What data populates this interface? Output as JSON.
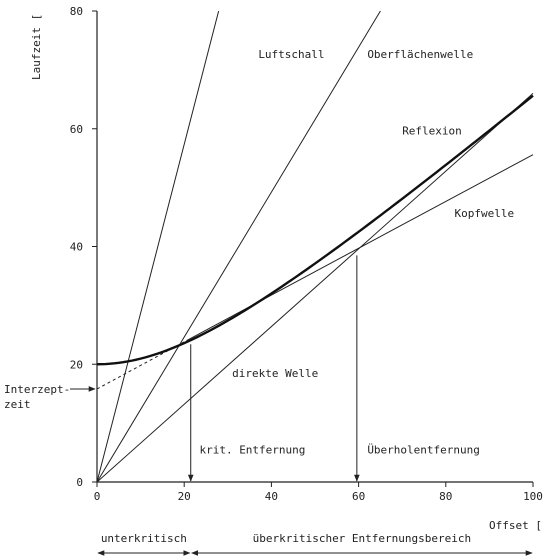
{
  "chart_data": {
    "type": "line",
    "xlabel": "Offset [",
    "ylabel": "Laufzeit [",
    "xlim": [
      0,
      100
    ],
    "ylim": [
      0,
      80
    ],
    "x_ticks": [
      0,
      20,
      40,
      60,
      80,
      100
    ],
    "y_ticks": [
      0,
      20,
      40,
      60,
      80
    ],
    "grid": false,
    "series": [
      {
        "name": "Luftschall",
        "style": "thin",
        "points": [
          [
            0,
            0
          ],
          [
            27.9,
            80
          ]
        ]
      },
      {
        "name": "Oberflächenwelle",
        "style": "thin",
        "points": [
          [
            0,
            0
          ],
          [
            65,
            80
          ]
        ]
      },
      {
        "name": "direkte Welle",
        "style": "thin",
        "points": [
          [
            0,
            0
          ],
          [
            100,
            66
          ]
        ]
      },
      {
        "name": "Kopfwelle",
        "style": "thin",
        "points": [
          [
            20.5,
            24
          ],
          [
            100,
            55.6
          ]
        ]
      },
      {
        "name": "",
        "style": "dashed",
        "points": [
          [
            0,
            15.8
          ],
          [
            20.5,
            24
          ]
        ]
      },
      {
        "name": "Reflexion",
        "style": "thick",
        "t0": 20,
        "velocity": 1.6
      }
    ],
    "annotations": [
      {
        "text": "Luftschall",
        "x": 37,
        "y": 72
      },
      {
        "text": "Oberflächenwelle",
        "x": 62,
        "y": 72
      },
      {
        "text": "Reflexion",
        "x": 70,
        "y": 59
      },
      {
        "text": "Kopfwelle",
        "x": 82,
        "y": 45
      },
      {
        "text": "direkte Welle",
        "x": 31,
        "y": 17.8
      },
      {
        "text": "krit. Entfernung",
        "x": 23.5,
        "y": 4.8
      },
      {
        "text": "Überholentfernung",
        "x": 62,
        "y": 4.8
      }
    ],
    "markers": [
      {
        "name": "krit-entfernung",
        "x": 21.5,
        "y_from": 23.4,
        "y_to": 0
      },
      {
        "name": "ueberholentfernung",
        "x": 59.6,
        "y_from": 38.5,
        "y_to": 0
      }
    ],
    "intercept": {
      "lines": [
        "Interzept-",
        "zeit"
      ],
      "value": 15.8
    },
    "ranges": [
      {
        "text": "unterkritisch",
        "from": 0,
        "to": 21.5
      },
      {
        "text": "überkritischer Entfernungsbereich",
        "from": 21.5,
        "to": 100
      }
    ]
  }
}
